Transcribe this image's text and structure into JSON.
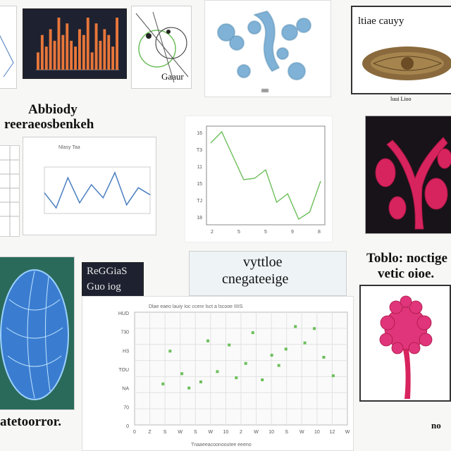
{
  "captions": {
    "top_middle_small": "Gaaur",
    "top_right_header": "ltiae cauyy",
    "top_right_sub": "luui Lioo",
    "left_big_line1": "Abbiody",
    "left_big_line2": "reeraeosbenkeh",
    "center_callout_line1": "vyttloe",
    "center_callout_line2": "cnegateeige",
    "right_big_line1": "Toblo: noctige",
    "right_big_line2": "vetic oioe.",
    "bottom_left_big": "atetoorror.",
    "bottom_right_small": "no",
    "dark_box_line1": "ReGGiaS",
    "dark_box_line2": "Guo iog",
    "mini_line_title": "Nlasy Taa",
    "scatter_title": "Dlae eaeo lauiy Ioc ccenr lsct a lscooe IIIIS",
    "scatter_xlabel": "Tnaaeeacoonooutee eeeno"
  },
  "colors": {
    "accent_orange": "#e8763a",
    "line_green": "#6cbf5a",
    "line_blue": "#4a7fc0",
    "magenta": "#d8245e",
    "dark_bg": "#1e2230"
  },
  "icons": [
    "molecule-icon",
    "fossil-icon",
    "coral-icon",
    "cell-icon",
    "flower-icon"
  ],
  "charts": {
    "bars": {
      "type": "bar",
      "values": [
        3,
        6,
        4,
        7,
        5,
        9,
        6,
        8,
        5,
        4,
        7,
        6,
        9,
        3,
        8,
        5,
        7,
        6,
        4,
        9
      ]
    },
    "mini_line": {
      "type": "line",
      "values": [
        40,
        25,
        55,
        30,
        48,
        35,
        60,
        28,
        45,
        38
      ]
    },
    "green_line": {
      "type": "line",
      "x": [
        1,
        2,
        3,
        4,
        5,
        6,
        7,
        8,
        9,
        10,
        11
      ],
      "y": [
        8.8,
        9.6,
        7.9,
        6.2,
        6.3,
        6.9,
        4.6,
        5.2,
        3.4,
        3.9,
        6.1
      ],
      "xticks": [
        "2",
        "5",
        "5",
        "9",
        "8"
      ],
      "yticks": [
        "16",
        "T3",
        "11",
        "15",
        "TJ",
        "18"
      ]
    },
    "scatter": {
      "type": "scatter",
      "points": [
        [
          1.2,
          2.0
        ],
        [
          1.5,
          3.6
        ],
        [
          2.0,
          2.5
        ],
        [
          2.3,
          1.8
        ],
        [
          2.8,
          2.1
        ],
        [
          3.1,
          4.1
        ],
        [
          3.5,
          2.6
        ],
        [
          4.0,
          3.9
        ],
        [
          4.3,
          2.3
        ],
        [
          4.7,
          3.0
        ],
        [
          5.0,
          4.5
        ],
        [
          5.4,
          2.2
        ],
        [
          5.8,
          3.4
        ],
        [
          6.1,
          2.9
        ],
        [
          6.4,
          3.7
        ],
        [
          6.8,
          4.8
        ],
        [
          7.2,
          4.0
        ],
        [
          7.6,
          4.7
        ],
        [
          8.0,
          3.3
        ],
        [
          8.4,
          2.4
        ]
      ],
      "xticks": [
        "0",
        "Z",
        "S",
        "W",
        "S",
        "W",
        "10",
        "2",
        "W",
        "10",
        "S",
        "W",
        "10",
        "12",
        "W"
      ],
      "yticks": [
        "HUD",
        "730",
        "H3",
        "TOU",
        "NA",
        "70",
        "0"
      ]
    }
  }
}
